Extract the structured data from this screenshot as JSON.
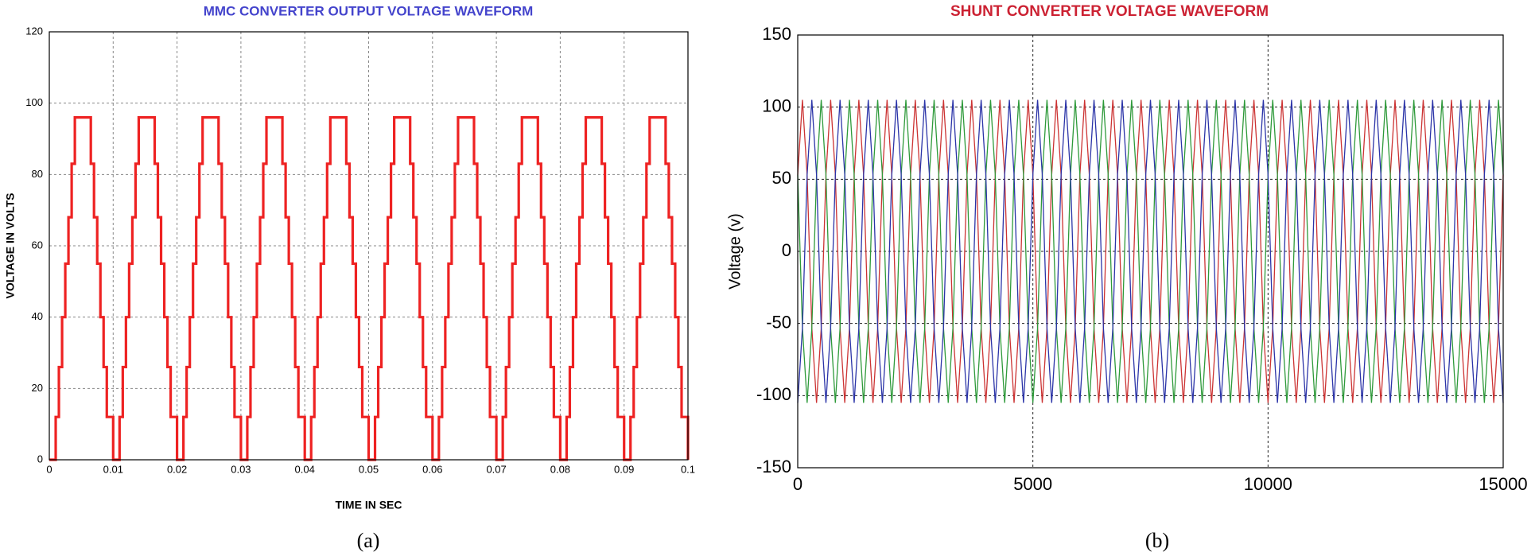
{
  "chart_data": [
    {
      "type": "line",
      "title": "MMC CONVERTER OUTPUT VOLTAGE WAVEFORM",
      "title_color": "#4444cc",
      "xlabel": "TIME IN SEC",
      "ylabel": "VOLTAGE IN VOLTS",
      "caption": "(a)",
      "xlim": [
        0,
        0.1
      ],
      "xticks": [
        0,
        0.01,
        0.02,
        0.03,
        0.04,
        0.05,
        0.06,
        0.07,
        0.08,
        0.09,
        0.1
      ],
      "ylim": [
        0,
        120
      ],
      "yticks": [
        0,
        20,
        40,
        60,
        80,
        100,
        120
      ],
      "grid": true,
      "drawstyle": "steps-post",
      "x": [
        0,
        0.001,
        0.0015,
        0.002,
        0.0025,
        0.003,
        0.0035,
        0.004,
        0.0065,
        0.007,
        0.0075,
        0.008,
        0.0085,
        0.009,
        0.01,
        0.011,
        0.0115,
        0.012,
        0.0125,
        0.013,
        0.0135,
        0.014,
        0.0165,
        0.017,
        0.0175,
        0.018,
        0.0185,
        0.019,
        0.02,
        0.021,
        0.0215,
        0.022,
        0.0225,
        0.023,
        0.0235,
        0.024,
        0.0265,
        0.027,
        0.0275,
        0.028,
        0.0285,
        0.029,
        0.03,
        0.031,
        0.0315,
        0.032,
        0.0325,
        0.033,
        0.0335,
        0.034,
        0.0365,
        0.037,
        0.0375,
        0.038,
        0.0385,
        0.039,
        0.04,
        0.041,
        0.0415,
        0.042,
        0.0425,
        0.043,
        0.0435,
        0.044,
        0.0465,
        0.047,
        0.0475,
        0.048,
        0.0485,
        0.049,
        0.05,
        0.051,
        0.0515,
        0.052,
        0.0525,
        0.053,
        0.0535,
        0.054,
        0.0565,
        0.057,
        0.0575,
        0.058,
        0.0585,
        0.059,
        0.06,
        0.061,
        0.0615,
        0.062,
        0.0625,
        0.063,
        0.0635,
        0.064,
        0.0665,
        0.067,
        0.0675,
        0.068,
        0.0685,
        0.069,
        0.07,
        0.071,
        0.0715,
        0.072,
        0.0725,
        0.073,
        0.0735,
        0.074,
        0.0765,
        0.077,
        0.0775,
        0.078,
        0.0785,
        0.079,
        0.08,
        0.081,
        0.0815,
        0.082,
        0.0825,
        0.083,
        0.0835,
        0.084,
        0.0865,
        0.087,
        0.0875,
        0.088,
        0.0885,
        0.089,
        0.09,
        0.091,
        0.0915,
        0.092,
        0.0925,
        0.093,
        0.0935,
        0.094,
        0.0965,
        0.097,
        0.0975,
        0.098,
        0.0985,
        0.099,
        0.1
      ],
      "series": [
        {
          "color": "#ee2222",
          "values": [
            0,
            12,
            26,
            40,
            55,
            68,
            83,
            96,
            83,
            68,
            55,
            40,
            26,
            12,
            0,
            12,
            26,
            40,
            55,
            68,
            83,
            96,
            83,
            68,
            55,
            40,
            26,
            12,
            0,
            12,
            26,
            40,
            55,
            68,
            83,
            96,
            83,
            68,
            55,
            40,
            26,
            12,
            0,
            12,
            26,
            40,
            55,
            68,
            83,
            96,
            83,
            68,
            55,
            40,
            26,
            12,
            0,
            12,
            26,
            40,
            55,
            68,
            83,
            96,
            83,
            68,
            55,
            40,
            26,
            12,
            0,
            12,
            26,
            40,
            55,
            68,
            83,
            96,
            83,
            68,
            55,
            40,
            26,
            12,
            0,
            12,
            26,
            40,
            55,
            68,
            83,
            96,
            83,
            68,
            55,
            40,
            26,
            12,
            0,
            12,
            26,
            40,
            55,
            68,
            83,
            96,
            83,
            68,
            55,
            40,
            26,
            12,
            0,
            12,
            26,
            40,
            55,
            68,
            83,
            96,
            83,
            68,
            55,
            40,
            26,
            12,
            0,
            12,
            26,
            40,
            55,
            68,
            83,
            96,
            83,
            68,
            55,
            40,
            26,
            12,
            0
          ]
        }
      ]
    },
    {
      "type": "line",
      "title": "SHUNT CONVERTER VOLTAGE WAVEFORM",
      "title_color": "#cc2233",
      "ylabel": "Voltage (v)",
      "caption": "(b)",
      "xlim": [
        0,
        15000
      ],
      "xticks": [
        0,
        5000,
        10000,
        15000
      ],
      "ylim": [
        -150,
        150
      ],
      "yticks": [
        -150,
        -100,
        -50,
        0,
        50,
        100,
        150
      ],
      "grid": true,
      "drawstyle": "linear",
      "x": [
        0,
        100,
        200,
        300,
        400,
        500,
        600,
        700,
        800,
        900,
        1000,
        1100,
        1200,
        1300,
        1400,
        1500,
        1600,
        1700,
        1800,
        1900,
        2000,
        2100,
        2200,
        2300,
        2400,
        2500,
        2600,
        2700,
        2800,
        2900,
        3000,
        3100,
        3200,
        3300,
        3400,
        3500,
        3600,
        3700,
        3800,
        3900,
        4000,
        4100,
        4200,
        4300,
        4400,
        4500,
        4600,
        4700,
        4800,
        4900,
        5000,
        5100,
        5200,
        5300,
        5400,
        5500,
        5600,
        5700,
        5800,
        5900,
        6000,
        6100,
        6200,
        6300,
        6400,
        6500,
        6600,
        6700,
        6800,
        6900,
        7000,
        7100,
        7200,
        7300,
        7400,
        7500,
        7600,
        7700,
        7800,
        7900,
        8000,
        8100,
        8200,
        8300,
        8400,
        8500,
        8600,
        8700,
        8800,
        8900,
        9000,
        9100,
        9200,
        9300,
        9400,
        9500,
        9600,
        9700,
        9800,
        9900,
        10000,
        10100,
        10200,
        10300,
        10400,
        10500,
        10600,
        10700,
        10800,
        10900,
        11000,
        11100,
        11200,
        11300,
        11400,
        11500,
        11600,
        11700,
        11800,
        11900,
        12000,
        12100,
        12200,
        12300,
        12400,
        12500,
        12600,
        12700,
        12800,
        12900,
        13000,
        13100,
        13200,
        13300,
        13400,
        13500,
        13600,
        13700,
        13800,
        13900,
        14000,
        14100,
        14200,
        14300,
        14400,
        14500,
        14600,
        14700,
        14800,
        14900,
        15000
      ],
      "series": [
        {
          "color": "#cc3333",
          "values": [
            53,
            105,
            53,
            -53,
            -105,
            -53,
            53,
            105,
            53,
            -53,
            -105,
            -53,
            53,
            105,
            53,
            -53,
            -105,
            -53,
            53,
            105,
            53,
            -53,
            -105,
            -53,
            53,
            105,
            53,
            -53,
            -105,
            -53,
            53,
            105,
            53,
            -53,
            -105,
            -53,
            53,
            105,
            53,
            -53,
            -105,
            -53,
            53,
            105,
            53,
            -53,
            -105,
            -53,
            53,
            105,
            53,
            -53,
            -105,
            -53,
            53,
            105,
            53,
            -53,
            -105,
            -53,
            53,
            105,
            53,
            -53,
            -105,
            -53,
            53,
            105,
            53,
            -53,
            -105,
            -53,
            53,
            105,
            53,
            -53,
            -105,
            -53,
            53,
            105,
            53,
            -53,
            -105,
            -53,
            53,
            105,
            53,
            -53,
            -105,
            -53,
            53,
            105,
            53,
            -53,
            -105,
            -53,
            53,
            105,
            53,
            -53,
            -105,
            -53,
            53,
            105,
            53,
            -53,
            -105,
            -53,
            53,
            105,
            53,
            -53,
            -105,
            -53,
            53,
            105,
            53,
            -53,
            -105,
            -53,
            53,
            105,
            53,
            -53,
            -105,
            -53,
            53,
            105,
            53,
            -53,
            -105,
            -53,
            53,
            105,
            53,
            -53,
            -105,
            -53,
            53,
            105,
            53,
            -53,
            -105,
            -53,
            53,
            105,
            53,
            -53,
            -105,
            -53,
            53
          ]
        },
        {
          "color": "#2e9a3a",
          "values": [
            53,
            -53,
            -105,
            -53,
            53,
            105,
            53,
            -53,
            -105,
            -53,
            53,
            105,
            53,
            -53,
            -105,
            -53,
            53,
            105,
            53,
            -53,
            -105,
            -53,
            53,
            105,
            53,
            -53,
            -105,
            -53,
            53,
            105,
            53,
            -53,
            -105,
            -53,
            53,
            105,
            53,
            -53,
            -105,
            -53,
            53,
            105,
            53,
            -53,
            -105,
            -53,
            53,
            105,
            53,
            -53,
            -105,
            -53,
            53,
            105,
            53,
            -53,
            -105,
            -53,
            53,
            105,
            53,
            -53,
            -105,
            -53,
            53,
            105,
            53,
            -53,
            -105,
            -53,
            53,
            105,
            53,
            -53,
            -105,
            -53,
            53,
            105,
            53,
            -53,
            -105,
            -53,
            53,
            105,
            53,
            -53,
            -105,
            -53,
            53,
            105,
            53,
            -53,
            -105,
            -53,
            53,
            105,
            53,
            -53,
            -105,
            -53,
            53,
            105,
            53,
            -53,
            -105,
            -53,
            53,
            105,
            53,
            -53,
            -105,
            -53,
            53,
            105,
            53,
            -53,
            -105,
            -53,
            53,
            105,
            53,
            -53,
            -105,
            -53,
            53,
            105,
            53,
            -53,
            -105,
            -53,
            53,
            105,
            53,
            -53,
            -105,
            -53,
            53,
            105,
            53,
            -53,
            -105,
            -53,
            53,
            105,
            53,
            -53,
            -105,
            -53,
            53,
            105,
            53
          ]
        },
        {
          "color": "#2b34a8",
          "values": [
            -105,
            -53,
            53,
            105,
            53,
            -53,
            -105,
            -53,
            53,
            105,
            53,
            -53,
            -105,
            -53,
            53,
            105,
            53,
            -53,
            -105,
            -53,
            53,
            105,
            53,
            -53,
            -105,
            -53,
            53,
            105,
            53,
            -53,
            -105,
            -53,
            53,
            105,
            53,
            -53,
            -105,
            -53,
            53,
            105,
            53,
            -53,
            -105,
            -53,
            53,
            105,
            53,
            -53,
            -105,
            -53,
            53,
            105,
            53,
            -53,
            -105,
            -53,
            53,
            105,
            53,
            -53,
            -105,
            -53,
            53,
            105,
            53,
            -53,
            -105,
            -53,
            53,
            105,
            53,
            -53,
            -105,
            -53,
            53,
            105,
            53,
            -53,
            -105,
            -53,
            53,
            105,
            53,
            -53,
            -105,
            -53,
            53,
            105,
            53,
            -53,
            -105,
            -53,
            53,
            105,
            53,
            -53,
            -105,
            -53,
            53,
            105,
            53,
            -53,
            -105,
            -53,
            53,
            105,
            53,
            -53,
            -105,
            -53,
            53,
            105,
            53,
            -53,
            -105,
            -53,
            53,
            105,
            53,
            -53,
            -105,
            -53,
            53,
            105,
            53,
            -53,
            -105,
            -53,
            53,
            105,
            53,
            -53,
            -105,
            -53,
            53,
            105,
            53,
            -53,
            -105,
            -53,
            53,
            105,
            53,
            -53,
            -105,
            -53,
            53,
            105,
            53,
            -53,
            -105
          ]
        }
      ]
    }
  ]
}
